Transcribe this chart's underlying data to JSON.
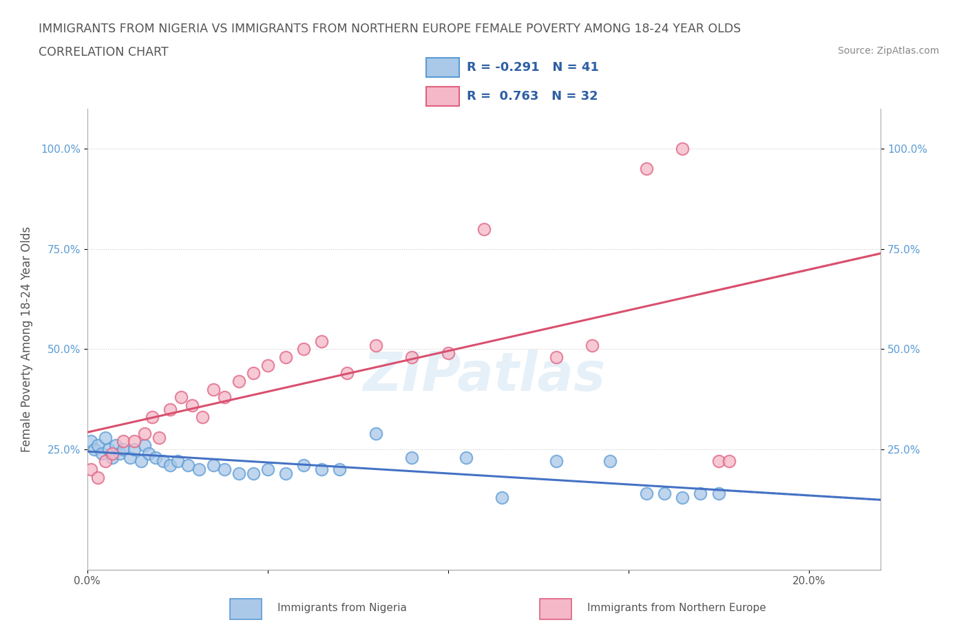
{
  "title_line1": "IMMIGRANTS FROM NIGERIA VS IMMIGRANTS FROM NORTHERN EUROPE FEMALE POVERTY AMONG 18-24 YEAR OLDS",
  "title_line2": "CORRELATION CHART",
  "source_text": "Source: ZipAtlas.com",
  "ylabel": "Female Poverty Among 18-24 Year Olds",
  "xlim": [
    0.0,
    0.22
  ],
  "ylim": [
    -0.05,
    1.1
  ],
  "nigeria_color": "#aac8e8",
  "nigeria_edge_color": "#5b9bd5",
  "northern_europe_color": "#f4b8c8",
  "northern_europe_edge_color": "#e06080",
  "nigeria_R": -0.291,
  "nigeria_N": 41,
  "northern_europe_R": 0.763,
  "northern_europe_N": 32,
  "nigeria_line_color": "#4472c4",
  "northern_europe_line_color": "#d94f6e",
  "watermark": "ZIPatlas",
  "legend_R_color": "#2e5fa3",
  "nigeria_x": [
    0.001,
    0.002,
    0.003,
    0.004,
    0.005,
    0.006,
    0.007,
    0.008,
    0.009,
    0.01,
    0.012,
    0.013,
    0.015,
    0.016,
    0.017,
    0.019,
    0.021,
    0.023,
    0.025,
    0.028,
    0.031,
    0.035,
    0.038,
    0.042,
    0.046,
    0.05,
    0.055,
    0.06,
    0.065,
    0.07,
    0.08,
    0.09,
    0.105,
    0.115,
    0.13,
    0.145,
    0.155,
    0.16,
    0.165,
    0.17,
    0.175
  ],
  "nigeria_y": [
    0.27,
    0.25,
    0.26,
    0.24,
    0.28,
    0.25,
    0.23,
    0.26,
    0.24,
    0.25,
    0.23,
    0.25,
    0.22,
    0.26,
    0.24,
    0.23,
    0.22,
    0.21,
    0.22,
    0.21,
    0.2,
    0.21,
    0.2,
    0.19,
    0.19,
    0.2,
    0.19,
    0.21,
    0.2,
    0.2,
    0.29,
    0.23,
    0.23,
    0.13,
    0.22,
    0.22,
    0.14,
    0.14,
    0.13,
    0.14,
    0.14
  ],
  "neu_x": [
    0.001,
    0.003,
    0.005,
    0.007,
    0.01,
    0.013,
    0.016,
    0.018,
    0.02,
    0.023,
    0.026,
    0.029,
    0.032,
    0.035,
    0.038,
    0.042,
    0.046,
    0.05,
    0.055,
    0.06,
    0.065,
    0.072,
    0.08,
    0.09,
    0.1,
    0.11,
    0.13,
    0.14,
    0.155,
    0.165,
    0.175,
    0.178
  ],
  "neu_y": [
    0.2,
    0.18,
    0.22,
    0.24,
    0.27,
    0.27,
    0.29,
    0.33,
    0.28,
    0.35,
    0.38,
    0.36,
    0.33,
    0.4,
    0.38,
    0.42,
    0.44,
    0.46,
    0.48,
    0.5,
    0.52,
    0.44,
    0.51,
    0.48,
    0.49,
    0.8,
    0.48,
    0.51,
    0.95,
    1.0,
    0.22,
    0.22
  ]
}
